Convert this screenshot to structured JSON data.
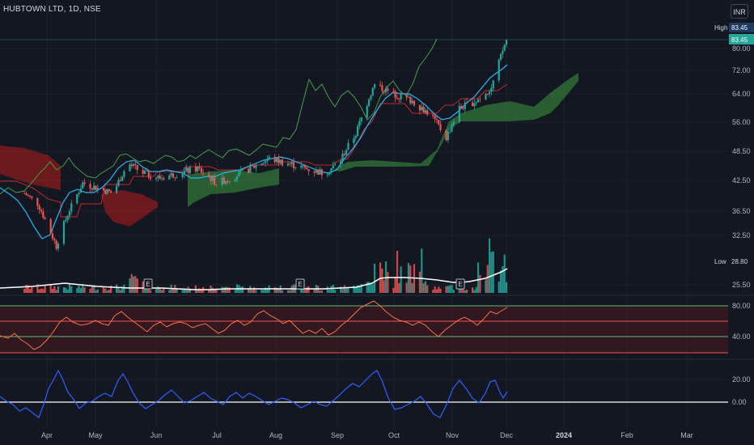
{
  "header": {
    "symbol": "HUBTOWN LTD, 1D, NSE",
    "currency": "INR"
  },
  "price_scale": {
    "high_label": "High",
    "high_value": "83.45",
    "last_value": "83.45",
    "low_label": "Low",
    "low_value": "28.80",
    "ticks": [
      "80.00",
      "72.00",
      "64.00",
      "56.00",
      "48.50",
      "42.50",
      "36.50",
      "32.50",
      "25.50"
    ]
  },
  "time_axis": {
    "labels": [
      "Apr",
      "May",
      "Jun",
      "Jul",
      "Aug",
      "Sep",
      "Oct",
      "Nov",
      "Dec",
      "2024",
      "Feb",
      "Mar"
    ]
  },
  "earnings_markers": [
    "E",
    "E",
    "E"
  ],
  "indicators": {
    "rsi_ticks": [
      "80.00",
      "40.00"
    ],
    "osc_ticks": [
      "20.00",
      "0.00"
    ]
  },
  "colors": {
    "bg": "#131722",
    "up": "#26a69a",
    "down": "#ef5350",
    "tenkan": "#2962ff",
    "kijun": "#b71c1c",
    "chikou": "#43a047",
    "cloud_bull": "#388e3c",
    "cloud_bear": "#b71c1c",
    "rsi": "#ff7043",
    "osc": "#2962ff"
  },
  "chart_data": {
    "type": "candlestick",
    "title": "HUBTOWN LTD, 1D, NSE",
    "x_range": [
      "2023-03-20",
      "2024-03-31"
    ],
    "y_range": [
      25.5,
      83.45
    ],
    "high": 83.45,
    "low": 28.8,
    "last": 83.45,
    "anchors": [
      {
        "date": "2023-03-20",
        "close": 40
      },
      {
        "date": "2023-03-27",
        "close": 38
      },
      {
        "date": "2023-04-03",
        "close": 33
      },
      {
        "date": "2023-04-06",
        "close": 31
      },
      {
        "date": "2023-04-12",
        "close": 36
      },
      {
        "date": "2023-04-20",
        "close": 42
      },
      {
        "date": "2023-04-28",
        "close": 41
      },
      {
        "date": "2023-05-06",
        "close": 40
      },
      {
        "date": "2023-05-14",
        "close": 46
      },
      {
        "date": "2023-05-22",
        "close": 44
      },
      {
        "date": "2023-05-31",
        "close": 43
      },
      {
        "date": "2023-06-10",
        "close": 44
      },
      {
        "date": "2023-06-20",
        "close": 45
      },
      {
        "date": "2023-06-30",
        "close": 42
      },
      {
        "date": "2023-07-08",
        "close": 43
      },
      {
        "date": "2023-07-18",
        "close": 45
      },
      {
        "date": "2023-07-28",
        "close": 47
      },
      {
        "date": "2023-08-07",
        "close": 46
      },
      {
        "date": "2023-08-16",
        "close": 45
      },
      {
        "date": "2023-08-26",
        "close": 44
      },
      {
        "date": "2023-09-03",
        "close": 46
      },
      {
        "date": "2023-09-12",
        "close": 53
      },
      {
        "date": "2023-09-22",
        "close": 67
      },
      {
        "date": "2023-10-02",
        "close": 64
      },
      {
        "date": "2023-10-12",
        "close": 62
      },
      {
        "date": "2023-10-22",
        "close": 58
      },
      {
        "date": "2023-10-30",
        "close": 52
      },
      {
        "date": "2023-11-06",
        "close": 60
      },
      {
        "date": "2023-11-15",
        "close": 62
      },
      {
        "date": "2023-11-23",
        "close": 66
      },
      {
        "date": "2023-11-28",
        "close": 77
      },
      {
        "date": "2023-12-01",
        "close": 83.45
      }
    ]
  }
}
